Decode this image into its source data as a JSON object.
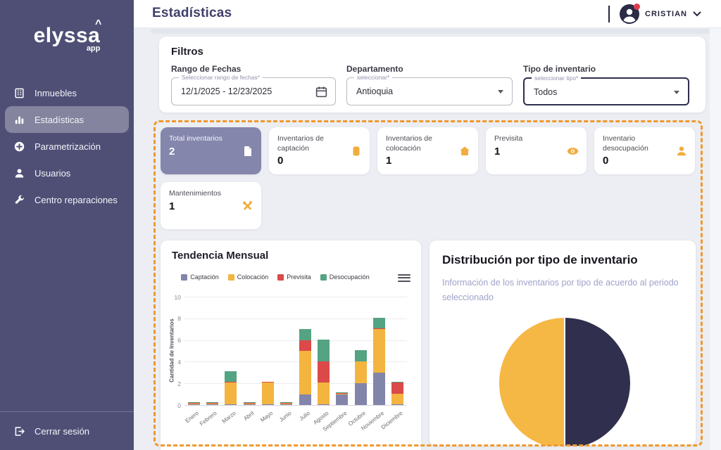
{
  "sidebar": {
    "logo": "elyssa",
    "logo_caret": "^",
    "logo_sub": "app",
    "items": [
      {
        "label": "Inmuebles",
        "icon": "building-icon",
        "active": false
      },
      {
        "label": "Estadísticas",
        "icon": "bar-chart-icon",
        "active": true
      },
      {
        "label": "Parametrización",
        "icon": "plus-circle-icon",
        "active": false
      },
      {
        "label": "Usuarios",
        "icon": "user-icon",
        "active": false
      },
      {
        "label": "Centro reparaciones",
        "icon": "wrench-icon",
        "active": false
      }
    ],
    "logout_label": "Cerrar sesión"
  },
  "header": {
    "title": "Estadísticas",
    "user": "CRISTIAN"
  },
  "filters": {
    "title": "Filtros",
    "fields": [
      {
        "label": "Rango de Fechas",
        "floating_label": "Seleccionar rango de fechas*",
        "value": "12/1/2025 - 12/23/2025",
        "icon": "calendar-icon"
      },
      {
        "label": "Departamento",
        "floating_label": "seleccionar*",
        "value": "Antioquia",
        "icon": "dropdown-arrow-icon"
      },
      {
        "label": "Tipo de inventario",
        "floating_label": "seleccionar tipo*",
        "value": "Todos",
        "icon": "dropdown-arrow-icon"
      }
    ]
  },
  "stat_cards": [
    {
      "label": "Total inventarios",
      "value": "2",
      "icon": "document-icon",
      "selected": true
    },
    {
      "label": "Inventarios de captación",
      "value": "0",
      "icon": "box-icon",
      "selected": false
    },
    {
      "label": "Inventarios de colocación",
      "value": "1",
      "icon": "house-icon",
      "selected": false
    },
    {
      "label": "Previsita",
      "value": "1",
      "icon": "eye-icon",
      "selected": false
    },
    {
      "label": "Inventario desocupación",
      "value": "0",
      "icon": "person-icon",
      "selected": false
    },
    {
      "label": "Mantenimientos",
      "value": "1",
      "icon": "tools-icon",
      "selected": false
    }
  ],
  "chart_data": [
    {
      "type": "bar",
      "stacked": true,
      "title": "Tendencia Mensual",
      "ylabel": "Cantidad de Inventarios",
      "ylim": [
        0,
        10
      ],
      "yticks": [
        0,
        2,
        4,
        6,
        8,
        10
      ],
      "grid": true,
      "legend_position": "top",
      "categories": [
        "Enero",
        "Febrero",
        "Marzo",
        "Abril",
        "Mayo",
        "Junio",
        "Julio",
        "Agosto",
        "Septiembre",
        "Octubre",
        "Noviembre",
        "Diciembre"
      ],
      "series": [
        {
          "name": "Captación",
          "color": "#8284AA",
          "values": [
            0,
            0,
            0,
            0,
            0,
            0,
            1,
            0,
            1,
            2,
            3,
            0
          ]
        },
        {
          "name": "Colocación",
          "color": "#F3B440",
          "values": [
            0,
            0,
            2,
            0,
            2,
            0,
            4,
            2,
            0,
            2,
            4,
            1
          ]
        },
        {
          "name": "Previsita",
          "color": "#DB4949",
          "values": [
            0,
            0,
            0,
            0,
            0,
            0,
            1,
            2,
            0,
            0,
            0,
            1
          ]
        },
        {
          "name": "Desocupación",
          "color": "#54A383",
          "values": [
            0,
            0,
            1,
            0,
            0,
            0,
            1,
            2,
            0,
            1,
            1,
            0
          ]
        }
      ]
    },
    {
      "type": "pie",
      "title": "Distribución por tipo de inventario",
      "subtitle": "Información de los inventarios por tipo de acuerdo al periodo seleccionado",
      "slices": [
        {
          "value": 1,
          "color": "#302F4E"
        },
        {
          "value": 1,
          "color": "#F5B844"
        }
      ]
    }
  ],
  "colors": {
    "accent_orange": "#F0992F",
    "sidebar": "#4F4F76",
    "selected_card": "#8486AC",
    "icon_yellow": "#F0AD3F",
    "pie_navy": "#302F4E",
    "pie_yellow": "#F5B844"
  }
}
